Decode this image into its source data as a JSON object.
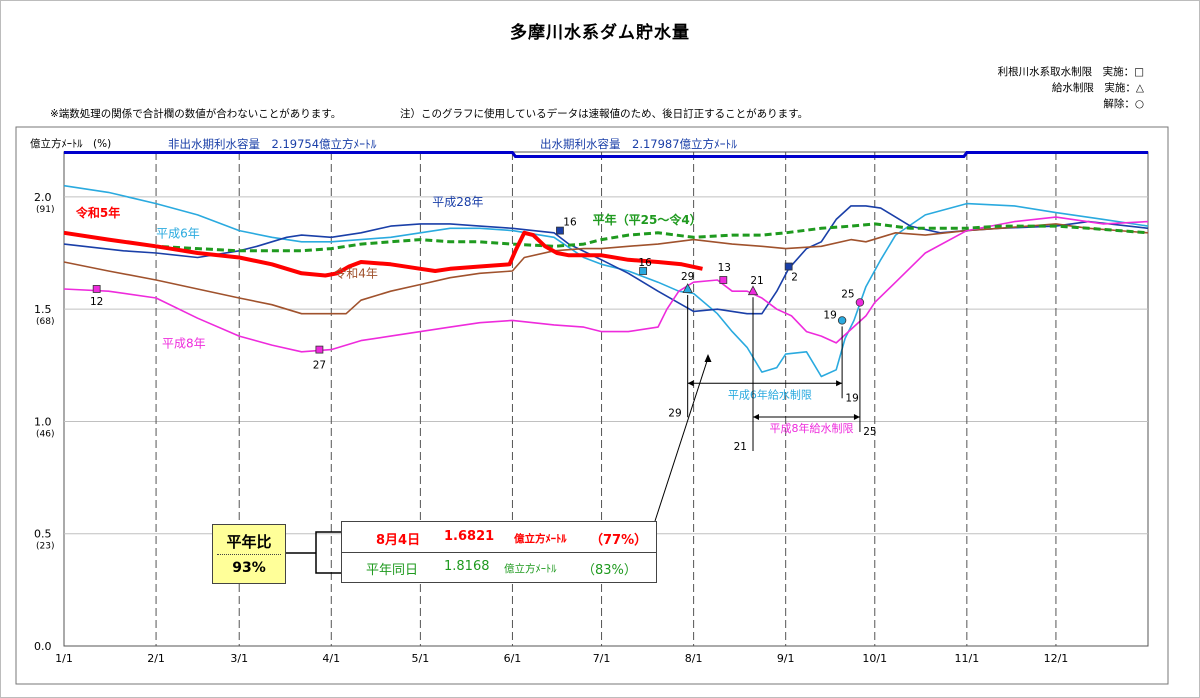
{
  "title": "多摩川水系ダム貯水量",
  "notes": {
    "rounding": "※端数処理の関係で合計欄の数値が合わないことがあります。",
    "preliminary": "注）このグラフに使用しているデータは速報値のため、後日訂正することがあります。"
  },
  "legend_restrictions": {
    "line1": "利根川水系取水制限　実施：□",
    "line2": "給水制限　実施：△",
    "line3": "解除：○"
  },
  "capacity": {
    "non_flood": "非出水期利水容量　2.19754億立方ﾒｰﾄﾙ",
    "flood": "出水期利水容量　2.17987億立方ﾒｰﾄﾙ",
    "non_flood_value": 2.19754,
    "flood_value": 2.17987
  },
  "summary": {
    "ratio_label": "平年比",
    "ratio_value": "93%",
    "current_date": "8月4日",
    "current_value": "1.6821",
    "current_unit": "億立方ﾒｰﾄﾙ",
    "current_pct": "（77%）",
    "normal_label": "平年同日",
    "normal_value": "1.8168",
    "normal_unit": "億立方ﾒｰﾄﾙ",
    "normal_pct": "（83%）"
  },
  "chart_data": {
    "type": "line",
    "ylabel": "億立方ﾒｰﾄﾙ　(%)",
    "ylim": [
      0,
      2.2
    ],
    "yticks": [
      {
        "value": 0.0,
        "label": "0.0",
        "pct": ""
      },
      {
        "value": 0.5,
        "label": "0.5",
        "pct": "(23)"
      },
      {
        "value": 1.0,
        "label": "1.0",
        "pct": "(46)"
      },
      {
        "value": 1.5,
        "label": "1.5",
        "pct": "(68)"
      },
      {
        "value": 2.0,
        "label": "2.0",
        "pct": "(91)"
      }
    ],
    "xlim": [
      0,
      365
    ],
    "xticks": [
      {
        "day": 0,
        "label": "1/1"
      },
      {
        "day": 31,
        "label": "2/1"
      },
      {
        "day": 59,
        "label": "3/1"
      },
      {
        "day": 90,
        "label": "4/1"
      },
      {
        "day": 120,
        "label": "5/1"
      },
      {
        "day": 151,
        "label": "6/1"
      },
      {
        "day": 181,
        "label": "7/1"
      },
      {
        "day": 212,
        "label": "8/1"
      },
      {
        "day": 243,
        "label": "9/1"
      },
      {
        "day": 273,
        "label": "10/1"
      },
      {
        "day": 304,
        "label": "11/1"
      },
      {
        "day": 334,
        "label": "12/1"
      }
    ],
    "series": [
      {
        "name": "令和5年",
        "color": "#ff0000",
        "points": [
          [
            0,
            1.84
          ],
          [
            15,
            1.81
          ],
          [
            31,
            1.78
          ],
          [
            45,
            1.75
          ],
          [
            59,
            1.73
          ],
          [
            70,
            1.7
          ],
          [
            75,
            1.68
          ],
          [
            80,
            1.66
          ],
          [
            88,
            1.65
          ],
          [
            92,
            1.66
          ],
          [
            96,
            1.69
          ],
          [
            100,
            1.71
          ],
          [
            110,
            1.7
          ],
          [
            120,
            1.68
          ],
          [
            125,
            1.67
          ],
          [
            130,
            1.68
          ],
          [
            140,
            1.69
          ],
          [
            150,
            1.7
          ],
          [
            152,
            1.76
          ],
          [
            155,
            1.84
          ],
          [
            158,
            1.83
          ],
          [
            162,
            1.78
          ],
          [
            166,
            1.75
          ],
          [
            170,
            1.74
          ],
          [
            181,
            1.74
          ],
          [
            190,
            1.72
          ],
          [
            200,
            1.71
          ],
          [
            208,
            1.7
          ],
          [
            215,
            1.68
          ]
        ]
      },
      {
        "name": "平年（平25～令4）",
        "color": "#1f9a1f",
        "points": [
          [
            0,
            1.84
          ],
          [
            20,
            1.8
          ],
          [
            31,
            1.78
          ],
          [
            45,
            1.77
          ],
          [
            59,
            1.76
          ],
          [
            70,
            1.76
          ],
          [
            80,
            1.76
          ],
          [
            90,
            1.77
          ],
          [
            100,
            1.79
          ],
          [
            110,
            1.8
          ],
          [
            120,
            1.81
          ],
          [
            130,
            1.8
          ],
          [
            140,
            1.8
          ],
          [
            151,
            1.79
          ],
          [
            165,
            1.78
          ],
          [
            175,
            1.79
          ],
          [
            181,
            1.81
          ],
          [
            190,
            1.83
          ],
          [
            200,
            1.84
          ],
          [
            212,
            1.82
          ],
          [
            225,
            1.83
          ],
          [
            235,
            1.83
          ],
          [
            243,
            1.84
          ],
          [
            255,
            1.86
          ],
          [
            265,
            1.87
          ],
          [
            273,
            1.88
          ],
          [
            285,
            1.86
          ],
          [
            295,
            1.86
          ],
          [
            304,
            1.86
          ],
          [
            315,
            1.87
          ],
          [
            334,
            1.87
          ],
          [
            345,
            1.86
          ],
          [
            365,
            1.84
          ]
        ]
      },
      {
        "name": "平成28年",
        "color": "#1a3fa8",
        "points": [
          [
            0,
            1.79
          ],
          [
            20,
            1.76
          ],
          [
            31,
            1.75
          ],
          [
            45,
            1.73
          ],
          [
            59,
            1.76
          ],
          [
            65,
            1.78
          ],
          [
            75,
            1.82
          ],
          [
            80,
            1.83
          ],
          [
            90,
            1.82
          ],
          [
            100,
            1.84
          ],
          [
            110,
            1.87
          ],
          [
            120,
            1.88
          ],
          [
            130,
            1.88
          ],
          [
            140,
            1.87
          ],
          [
            151,
            1.86
          ],
          [
            165,
            1.84
          ],
          [
            170,
            1.79
          ],
          [
            181,
            1.72
          ],
          [
            190,
            1.66
          ],
          [
            200,
            1.58
          ],
          [
            212,
            1.49
          ],
          [
            220,
            1.5
          ],
          [
            230,
            1.48
          ],
          [
            235,
            1.48
          ],
          [
            240,
            1.58
          ],
          [
            244,
            1.68
          ],
          [
            250,
            1.77
          ],
          [
            255,
            1.8
          ],
          [
            260,
            1.9
          ],
          [
            265,
            1.96
          ],
          [
            270,
            1.96
          ],
          [
            275,
            1.95
          ],
          [
            280,
            1.91
          ],
          [
            285,
            1.87
          ],
          [
            295,
            1.84
          ],
          [
            304,
            1.85
          ],
          [
            315,
            1.86
          ],
          [
            334,
            1.87
          ],
          [
            345,
            1.89
          ],
          [
            365,
            1.86
          ]
        ]
      },
      {
        "name": "平成6年",
        "color": "#2aaadf",
        "points": [
          [
            0,
            2.05
          ],
          [
            15,
            2.02
          ],
          [
            31,
            1.97
          ],
          [
            45,
            1.92
          ],
          [
            59,
            1.85
          ],
          [
            70,
            1.82
          ],
          [
            80,
            1.8
          ],
          [
            90,
            1.8
          ],
          [
            100,
            1.81
          ],
          [
            110,
            1.82
          ],
          [
            120,
            1.84
          ],
          [
            130,
            1.86
          ],
          [
            140,
            1.86
          ],
          [
            151,
            1.85
          ],
          [
            165,
            1.82
          ],
          [
            175,
            1.73
          ],
          [
            181,
            1.7
          ],
          [
            190,
            1.67
          ],
          [
            200,
            1.62
          ],
          [
            207,
            1.58
          ],
          [
            212,
            1.57
          ],
          [
            220,
            1.48
          ],
          [
            225,
            1.4
          ],
          [
            230,
            1.33
          ],
          [
            235,
            1.22
          ],
          [
            240,
            1.24
          ],
          [
            243,
            1.3
          ],
          [
            250,
            1.31
          ],
          [
            255,
            1.2
          ],
          [
            260,
            1.23
          ],
          [
            263,
            1.37
          ],
          [
            266,
            1.45
          ],
          [
            270,
            1.6
          ],
          [
            275,
            1.72
          ],
          [
            280,
            1.83
          ],
          [
            290,
            1.92
          ],
          [
            304,
            1.97
          ],
          [
            320,
            1.96
          ],
          [
            334,
            1.93
          ],
          [
            350,
            1.9
          ],
          [
            365,
            1.87
          ]
        ]
      },
      {
        "name": "令和4年",
        "color": "#a0522d",
        "points": [
          [
            0,
            1.71
          ],
          [
            15,
            1.67
          ],
          [
            31,
            1.63
          ],
          [
            45,
            1.59
          ],
          [
            59,
            1.55
          ],
          [
            70,
            1.52
          ],
          [
            80,
            1.48
          ],
          [
            90,
            1.48
          ],
          [
            95,
            1.48
          ],
          [
            100,
            1.54
          ],
          [
            110,
            1.58
          ],
          [
            120,
            1.61
          ],
          [
            130,
            1.64
          ],
          [
            140,
            1.66
          ],
          [
            151,
            1.67
          ],
          [
            155,
            1.73
          ],
          [
            165,
            1.76
          ],
          [
            175,
            1.77
          ],
          [
            181,
            1.77
          ],
          [
            190,
            1.78
          ],
          [
            200,
            1.79
          ],
          [
            212,
            1.81
          ],
          [
            225,
            1.79
          ],
          [
            235,
            1.78
          ],
          [
            243,
            1.77
          ],
          [
            255,
            1.78
          ],
          [
            265,
            1.81
          ],
          [
            270,
            1.8
          ],
          [
            280,
            1.84
          ],
          [
            290,
            1.83
          ],
          [
            304,
            1.85
          ],
          [
            315,
            1.86
          ],
          [
            334,
            1.88
          ],
          [
            345,
            1.86
          ],
          [
            365,
            1.84
          ]
        ]
      },
      {
        "name": "平成8年",
        "color": "#ee2bdc",
        "points": [
          [
            0,
            1.59
          ],
          [
            15,
            1.58
          ],
          [
            31,
            1.55
          ],
          [
            45,
            1.46
          ],
          [
            59,
            1.38
          ],
          [
            70,
            1.34
          ],
          [
            80,
            1.31
          ],
          [
            90,
            1.32
          ],
          [
            100,
            1.36
          ],
          [
            110,
            1.38
          ],
          [
            120,
            1.4
          ],
          [
            130,
            1.42
          ],
          [
            140,
            1.44
          ],
          [
            151,
            1.45
          ],
          [
            165,
            1.43
          ],
          [
            175,
            1.42
          ],
          [
            181,
            1.4
          ],
          [
            190,
            1.4
          ],
          [
            200,
            1.42
          ],
          [
            203,
            1.5
          ],
          [
            207,
            1.58
          ],
          [
            212,
            1.62
          ],
          [
            220,
            1.63
          ],
          [
            225,
            1.58
          ],
          [
            230,
            1.58
          ],
          [
            235,
            1.55
          ],
          [
            240,
            1.5
          ],
          [
            245,
            1.47
          ],
          [
            250,
            1.4
          ],
          [
            255,
            1.38
          ],
          [
            260,
            1.35
          ],
          [
            265,
            1.41
          ],
          [
            270,
            1.47
          ],
          [
            273,
            1.53
          ],
          [
            280,
            1.62
          ],
          [
            290,
            1.75
          ],
          [
            304,
            1.85
          ],
          [
            320,
            1.89
          ],
          [
            334,
            1.91
          ],
          [
            350,
            1.88
          ],
          [
            365,
            1.89
          ]
        ]
      }
    ],
    "series_labels": [
      {
        "text": "令和5年",
        "color": "#ff0000",
        "bold": true,
        "day": 4,
        "value": 1.91
      },
      {
        "text": "平成6年",
        "color": "#2aaadf",
        "bold": false,
        "day": 31,
        "value": 1.82
      },
      {
        "text": "平成28年",
        "color": "#1a3fa8",
        "bold": false,
        "day": 124,
        "value": 1.96
      },
      {
        "text": "平年（平25～令4）",
        "color": "#1f9a1f",
        "bold": true,
        "day": 178,
        "value": 1.88
      },
      {
        "text": "令和4年",
        "color": "#a0522d",
        "bold": false,
        "day": 91,
        "value": 1.64
      },
      {
        "text": "平成8年",
        "color": "#ee2bdc",
        "bold": false,
        "day": 33,
        "value": 1.33
      }
    ],
    "markers": [
      {
        "day": 11,
        "value": 1.59,
        "shape": "square",
        "color": "#ee2bdc",
        "label": "12",
        "ldx": 0,
        "ldy": 12
      },
      {
        "day": 86,
        "value": 1.32,
        "shape": "square",
        "color": "#ee2bdc",
        "label": "27",
        "ldx": 0,
        "ldy": 15
      },
      {
        "day": 167,
        "value": 1.85,
        "shape": "square",
        "color": "#1a3fa8",
        "label": "16",
        "ldx": 10,
        "ldy": -9
      },
      {
        "day": 195,
        "value": 1.67,
        "shape": "square",
        "color": "#2aaadf",
        "label": "16",
        "ldx": 2,
        "ldy": -9
      },
      {
        "day": 210,
        "value": 1.59,
        "shape": "triangle",
        "color": "#2aaadf",
        "label": "29",
        "ldx": 0,
        "ldy": -13
      },
      {
        "day": 222,
        "value": 1.63,
        "shape": "square",
        "color": "#ee2bdc",
        "label": "13",
        "ldx": 1,
        "ldy": -13
      },
      {
        "day": 232,
        "value": 1.58,
        "shape": "triangle",
        "color": "#ee2bdc",
        "label": "21",
        "ldx": 4,
        "ldy": -11
      },
      {
        "day": 244,
        "value": 1.69,
        "shape": "square",
        "color": "#1a3fa8",
        "label": "2",
        "ldx": 6,
        "ldy": 10
      },
      {
        "day": 262,
        "value": 1.45,
        "shape": "circle",
        "color": "#2aaadf",
        "label": "19",
        "ldx": -12,
        "ldy": -6
      },
      {
        "day": 268,
        "value": 1.53,
        "shape": "circle",
        "color": "#ee2bdc",
        "label": "25",
        "ldx": -12,
        "ldy": -9
      }
    ],
    "restrictions": [
      {
        "label": "平成6年給水制限",
        "color": "#2aaadf",
        "start_day": 210,
        "end_day": 262,
        "value": 1.17,
        "start_label": "29",
        "end_label": "19"
      },
      {
        "label": "平成8年給水制限",
        "color": "#ee2bdc",
        "start_day": 232,
        "end_day": 268,
        "value": 1.02,
        "start_label": "21",
        "end_label": "25"
      }
    ]
  }
}
